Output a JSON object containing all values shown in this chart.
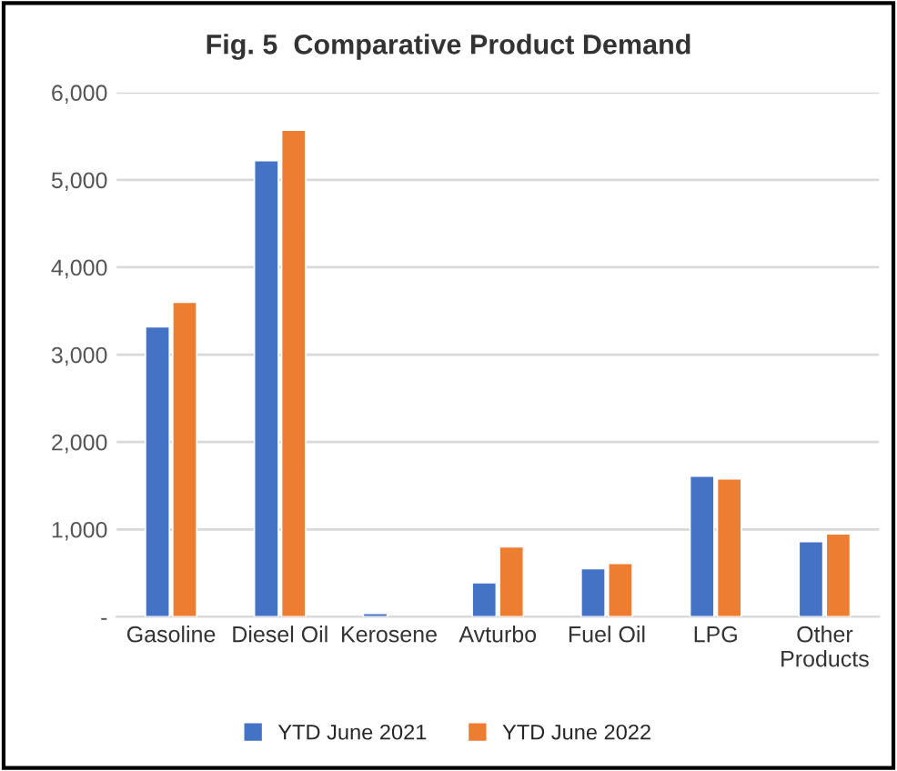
{
  "chart_data": {
    "type": "bar",
    "title": "Fig. 5  Comparative Product Demand",
    "categories": [
      "Gasoline",
      "Diesel Oil",
      "Kerosene",
      "Avturbo",
      "Fuel Oil",
      "LPG",
      "Other\nProducts"
    ],
    "series": [
      {
        "name": "YTD June 2021",
        "color": "#4472c4",
        "values": [
          3320,
          5220,
          40,
          390,
          550,
          1610,
          860
        ]
      },
      {
        "name": "YTD June 2022",
        "color": "#ed7d31",
        "values": [
          3600,
          5570,
          null,
          800,
          610,
          1580,
          950
        ]
      }
    ],
    "ylim": [
      0,
      6000
    ],
    "yticks": [
      {
        "value": 0,
        "label": "-"
      },
      {
        "value": 1000,
        "label": "1,000"
      },
      {
        "value": 2000,
        "label": "2,000"
      },
      {
        "value": 3000,
        "label": "3,000"
      },
      {
        "value": 4000,
        "label": "4,000"
      },
      {
        "value": 5000,
        "label": "5,000"
      },
      {
        "value": 6000,
        "label": "6,000"
      }
    ],
    "grid": "y",
    "legend": "bottom"
  }
}
